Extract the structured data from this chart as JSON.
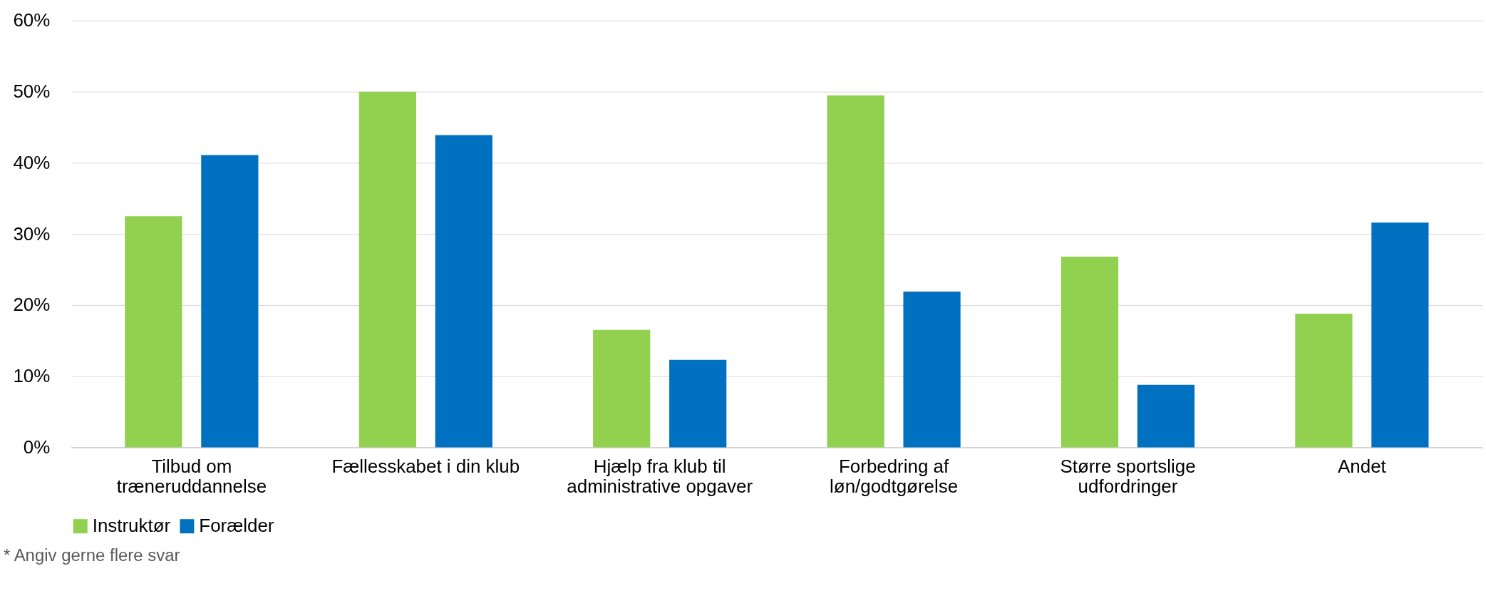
{
  "chart_data": {
    "type": "bar",
    "categories": [
      "Tilbud om\ntræneruddannelse",
      "Fællesskabet i din klub",
      "Hjælp fra klub til\nadministrative opgaver",
      "Forbedring af\nløn/godtgørelse",
      "Større sportslige\nudfordringer",
      "Andet"
    ],
    "series": [
      {
        "name": "Instruktør",
        "color": "#92d050",
        "values": [
          32.5,
          50,
          16.5,
          49.5,
          26.8,
          18.8
        ]
      },
      {
        "name": "Forælder",
        "color": "#0070c0",
        "values": [
          41.1,
          43.9,
          12.3,
          21.9,
          8.8,
          31.6
        ]
      }
    ],
    "ylim": [
      0,
      60
    ],
    "yticks": [
      {
        "value": 0,
        "label": "0%"
      },
      {
        "value": 10,
        "label": "10%"
      },
      {
        "value": 20,
        "label": "20%"
      },
      {
        "value": 30,
        "label": "30%"
      },
      {
        "value": 40,
        "label": "40%"
      },
      {
        "value": 50,
        "label": "50%"
      },
      {
        "value": 60,
        "label": "60%"
      }
    ],
    "grid": "y",
    "legend": "bottom",
    "annotations": [
      "* Angiv gerne flere svar"
    ]
  }
}
